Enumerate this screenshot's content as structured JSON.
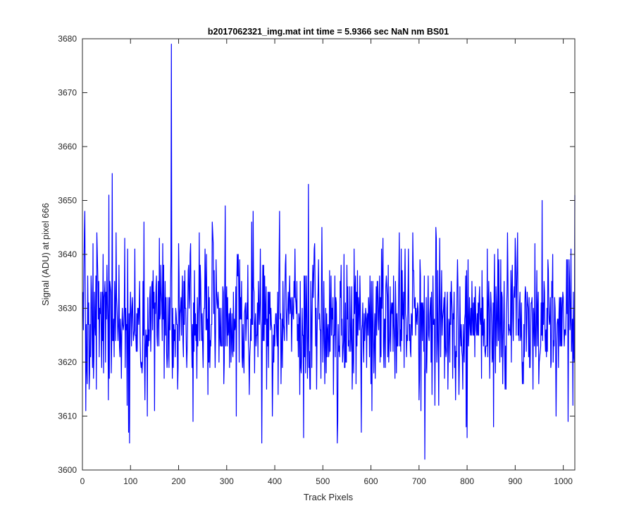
{
  "chart_data": {
    "type": "line",
    "title": "b2017062321_img.mat int time = 5.9366 sec  NaN nm BS01",
    "xlabel": "Track Pixels",
    "ylabel": "Signal (ADU) at pixel 666",
    "xlim": [
      0,
      1024
    ],
    "ylim": [
      3600,
      3680
    ],
    "xticks": [
      0,
      100,
      200,
      300,
      400,
      500,
      600,
      700,
      800,
      900,
      1000
    ],
    "yticks": [
      3600,
      3610,
      3620,
      3630,
      3640,
      3650,
      3660,
      3670,
      3680
    ],
    "grid": false,
    "series": [
      {
        "color": "#0000ff",
        "x_start": 1,
        "x_step": 1,
        "noise_level": 3628,
        "noise_sigma": 6.5,
        "values_notable": [
          [
            2,
            3626
          ],
          [
            5,
            3648
          ],
          [
            10,
            3616
          ],
          [
            14,
            3615
          ],
          [
            30,
            3644
          ],
          [
            55,
            3651
          ],
          [
            62,
            3655
          ],
          [
            88,
            3643
          ],
          [
            96,
            3607
          ],
          [
            98,
            3605
          ],
          [
            128,
            3646
          ],
          [
            135,
            3610
          ],
          [
            160,
            3643
          ],
          [
            185,
            3679
          ],
          [
            200,
            3642
          ],
          [
            230,
            3609
          ],
          [
            270,
            3646
          ],
          [
            297,
            3649
          ],
          [
            320,
            3610
          ],
          [
            322,
            3640
          ],
          [
            352,
            3646
          ],
          [
            355,
            3648
          ],
          [
            373,
            3605
          ],
          [
            395,
            3610
          ],
          [
            410,
            3648
          ],
          [
            460,
            3606
          ],
          [
            470,
            3653
          ],
          [
            498,
            3645
          ],
          [
            520,
            3628
          ],
          [
            530,
            3605
          ],
          [
            531,
            3609
          ],
          [
            565,
            3641
          ],
          [
            580,
            3607
          ],
          [
            622,
            3641
          ],
          [
            663,
            3641
          ],
          [
            712,
            3602
          ],
          [
            735,
            3645
          ],
          [
            798,
            3608
          ],
          [
            800,
            3606
          ],
          [
            855,
            3608
          ],
          [
            900,
            3643
          ],
          [
            956,
            3650
          ],
          [
            985,
            3610
          ],
          [
            1010,
            3609
          ],
          [
            1020,
            3612
          ],
          [
            1024,
            3651
          ]
        ]
      }
    ]
  }
}
